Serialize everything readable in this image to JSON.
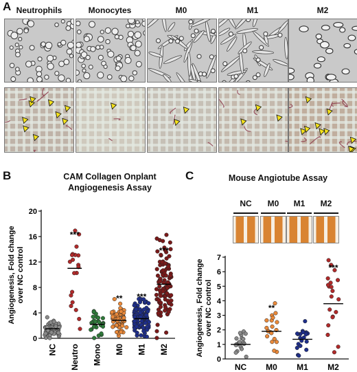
{
  "panel_a": {
    "letter": "A",
    "columns": [
      "Neutrophils",
      "Monocytes",
      "M0",
      "M1",
      "M2"
    ],
    "arrow_counts": [
      9,
      1,
      2,
      3,
      10
    ]
  },
  "panel_b": {
    "letter": "B",
    "title_line1": "CAM Collagen Onplant",
    "title_line2": "Angiogenesis Assay"
  },
  "panel_c": {
    "letter": "C",
    "title": "Mouse Angiotube Assay",
    "tube_labels": [
      "NC",
      "M0",
      "M1",
      "M2"
    ]
  },
  "chart_data": [
    {
      "type": "scatter",
      "title": "CAM Collagen Onplant Angiogenesis Assay",
      "ylabel": "Angiogenesis, Fold change over NC control",
      "categories": [
        "NC",
        "Neutro",
        "Mono",
        "M0",
        "M1",
        "M2"
      ],
      "ylim": [
        0,
        20
      ],
      "yticks": [
        0,
        4,
        8,
        12,
        16,
        20
      ],
      "means": [
        1.5,
        11,
        2.2,
        2.8,
        3.1,
        8.5
      ],
      "significance": [
        "",
        "***",
        "",
        "**",
        "***",
        "***"
      ],
      "point_counts": [
        65,
        20,
        30,
        60,
        110,
        115
      ],
      "point_colors": [
        "#8a8a8a",
        "#b02a2a",
        "#2f7a3a",
        "#e9893a",
        "#1e2e8a",
        "#7a1a1a"
      ],
      "grid": false
    },
    {
      "type": "scatter",
      "title": "Mouse Angiotube Assay",
      "ylabel": "Angiogenesis, Fold change over NC control",
      "categories": [
        "NC",
        "M0",
        "M1",
        "M2"
      ],
      "ylim": [
        0,
        7
      ],
      "yticks": [
        0,
        1,
        2,
        3,
        4,
        5,
        6,
        7
      ],
      "means": [
        1.0,
        1.9,
        1.35,
        3.8
      ],
      "significance": [
        "",
        "**",
        "",
        "***"
      ],
      "point_counts": [
        20,
        20,
        20,
        20
      ],
      "point_colors": [
        "#8a8a8a",
        "#e9893a",
        "#1e2e8a",
        "#b02a2a"
      ],
      "grid": false
    }
  ]
}
